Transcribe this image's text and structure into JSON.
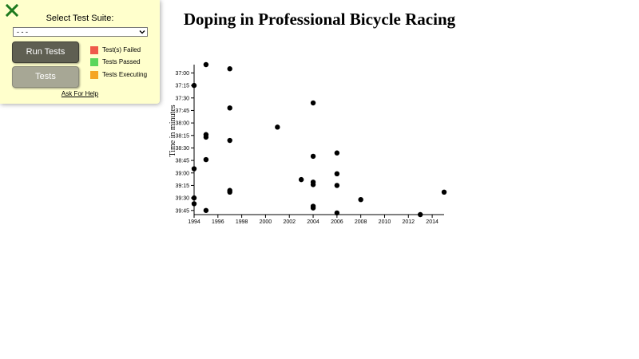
{
  "test_panel": {
    "title": "Select Test Suite:",
    "select_value": "- - -",
    "run_button": "Run Tests",
    "tests_button": "Tests",
    "legend": [
      {
        "label": "Test(s) Failed",
        "color": "#ef5a4a"
      },
      {
        "label": "Tests Passed",
        "color": "#5bd65b"
      },
      {
        "label": "Tests Executing",
        "color": "#f5a623"
      }
    ],
    "help_link": "Ask For Help",
    "close_icon_color": "#1e7a1e"
  },
  "chart_data": {
    "type": "scatter",
    "title": "Doping in Professional Bicycle Racing",
    "xlabel": "",
    "ylabel": "Time in minutes",
    "xlim": [
      1994,
      2015
    ],
    "ylim_seconds": [
      2210,
      2390
    ],
    "x_ticks": [
      1994,
      1996,
      1998,
      2000,
      2002,
      2004,
      2006,
      2008,
      2010,
      2012,
      2014
    ],
    "y_ticks": [
      {
        "seconds": 2220,
        "label": "37:00"
      },
      {
        "seconds": 2235,
        "label": "37:15"
      },
      {
        "seconds": 2250,
        "label": "37:30"
      },
      {
        "seconds": 2265,
        "label": "37:45"
      },
      {
        "seconds": 2280,
        "label": "38:00"
      },
      {
        "seconds": 2295,
        "label": "38:15"
      },
      {
        "seconds": 2310,
        "label": "38:30"
      },
      {
        "seconds": 2325,
        "label": "38:45"
      },
      {
        "seconds": 2340,
        "label": "39:00"
      },
      {
        "seconds": 2355,
        "label": "39:15"
      },
      {
        "seconds": 2370,
        "label": "39:30"
      },
      {
        "seconds": 2385,
        "label": "39:45"
      }
    ],
    "point_color": "#000000",
    "grid": false,
    "points": [
      {
        "year": 1994,
        "seconds": 2235
      },
      {
        "year": 1994,
        "seconds": 2335
      },
      {
        "year": 1994,
        "seconds": 2370
      },
      {
        "year": 1994,
        "seconds": 2377
      },
      {
        "year": 1995,
        "seconds": 2210
      },
      {
        "year": 1995,
        "seconds": 2294
      },
      {
        "year": 1995,
        "seconds": 2297
      },
      {
        "year": 1995,
        "seconds": 2324
      },
      {
        "year": 1995,
        "seconds": 2385
      },
      {
        "year": 1997,
        "seconds": 2215
      },
      {
        "year": 1997,
        "seconds": 2262
      },
      {
        "year": 1997,
        "seconds": 2301
      },
      {
        "year": 1997,
        "seconds": 2361
      },
      {
        "year": 1997,
        "seconds": 2363
      },
      {
        "year": 2001,
        "seconds": 2285
      },
      {
        "year": 2003,
        "seconds": 2348
      },
      {
        "year": 2004,
        "seconds": 2256
      },
      {
        "year": 2004,
        "seconds": 2320
      },
      {
        "year": 2004,
        "seconds": 2351
      },
      {
        "year": 2004,
        "seconds": 2354
      },
      {
        "year": 2004,
        "seconds": 2380
      },
      {
        "year": 2004,
        "seconds": 2382
      },
      {
        "year": 2006,
        "seconds": 2316
      },
      {
        "year": 2006,
        "seconds": 2341
      },
      {
        "year": 2006,
        "seconds": 2355
      },
      {
        "year": 2006,
        "seconds": 2388
      },
      {
        "year": 2008,
        "seconds": 2372
      },
      {
        "year": 2013,
        "seconds": 2390
      },
      {
        "year": 2015,
        "seconds": 2363
      }
    ]
  }
}
